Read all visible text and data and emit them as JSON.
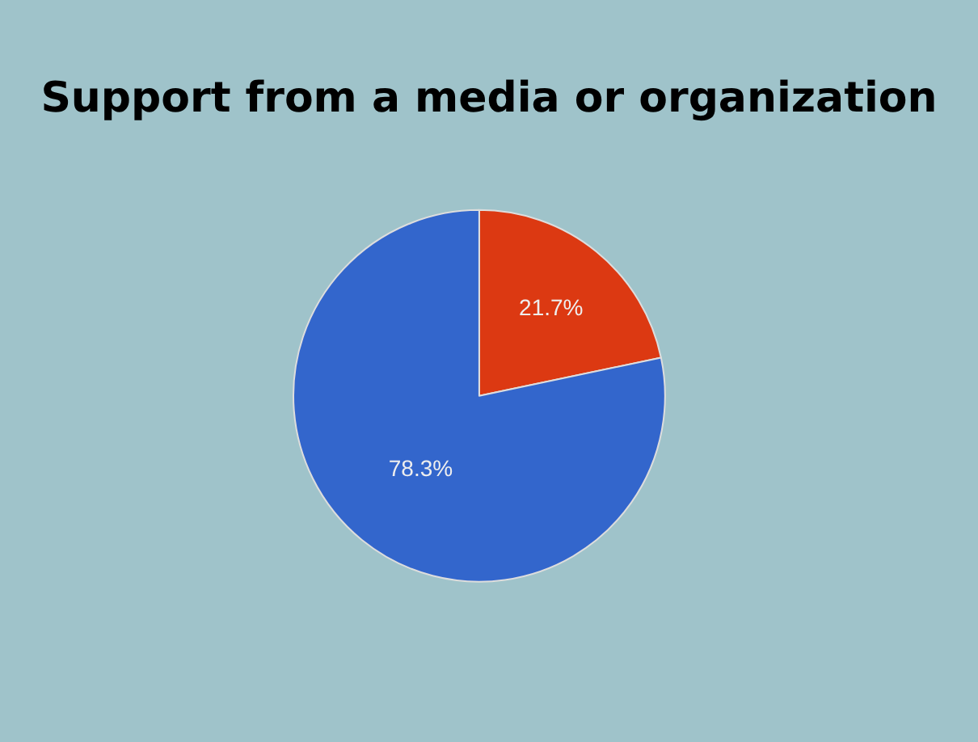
{
  "chart_data": {
    "type": "pie",
    "title": "Support from a media or organization",
    "categories": [
      null,
      null
    ],
    "values": [
      21.7,
      78.3
    ],
    "colors": [
      "#dc3912",
      "#3366cc"
    ],
    "value_labels": [
      "21.7%",
      "78.3%"
    ],
    "legend": false
  }
}
